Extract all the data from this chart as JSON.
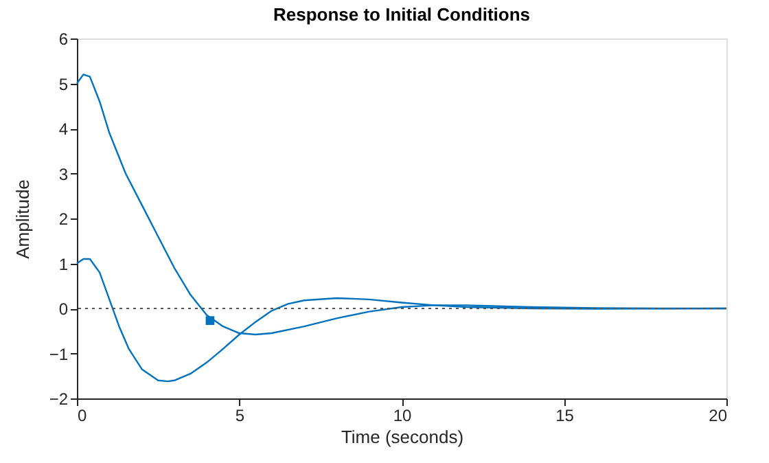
{
  "chart_data": {
    "type": "line",
    "title": "Response to Initial Conditions",
    "xlabel": "Time (seconds)",
    "ylabel": "Amplitude",
    "xlim": [
      0,
      20
    ],
    "xticks": [
      0,
      5,
      10,
      15,
      20
    ],
    "ylim": [
      -2,
      6
    ],
    "yticks": [
      -2,
      -1,
      0,
      1,
      2,
      3,
      4,
      5,
      6
    ],
    "grid": false,
    "line_style": "solid",
    "series": [
      {
        "color": "#0072bd",
        "x": [
          0,
          0.2,
          0.4,
          0.7,
          1,
          1.5,
          2,
          2.5,
          3,
          3.5,
          4,
          4.5,
          5,
          5.5,
          6,
          7,
          8,
          9,
          10,
          11,
          12,
          13,
          14,
          16,
          18,
          20
        ],
        "values": [
          5.0,
          5.2,
          5.15,
          4.6,
          3.9,
          3.0,
          2.3,
          1.6,
          0.9,
          0.3,
          -0.15,
          -0.4,
          -0.55,
          -0.58,
          -0.55,
          -0.4,
          -0.22,
          -0.07,
          0.03,
          0.07,
          0.07,
          0.05,
          0.03,
          0.01,
          0,
          0
        ]
      },
      {
        "color": "#0072bd",
        "x": [
          0,
          0.2,
          0.4,
          0.7,
          1,
          1.3,
          1.6,
          2,
          2.5,
          2.8,
          3,
          3.5,
          4,
          4.5,
          5,
          5.5,
          6,
          6.5,
          7,
          8,
          9,
          10,
          11,
          12,
          14,
          16,
          20
        ],
        "values": [
          1.0,
          1.1,
          1.1,
          0.8,
          0.2,
          -0.4,
          -0.9,
          -1.35,
          -1.6,
          -1.62,
          -1.6,
          -1.45,
          -1.2,
          -0.9,
          -0.58,
          -0.3,
          -0.05,
          0.1,
          0.18,
          0.23,
          0.2,
          0.13,
          0.07,
          0.03,
          0,
          -0.01,
          0
        ]
      },
      {
        "type": "scatter",
        "marker": "square",
        "color": "#0072bd",
        "x": [
          4.1
        ],
        "values": [
          -0.27
        ]
      }
    ],
    "ref_lines": [
      {
        "axis": "y",
        "value": 0,
        "color": "#555555",
        "line_style": "dotted"
      }
    ]
  }
}
